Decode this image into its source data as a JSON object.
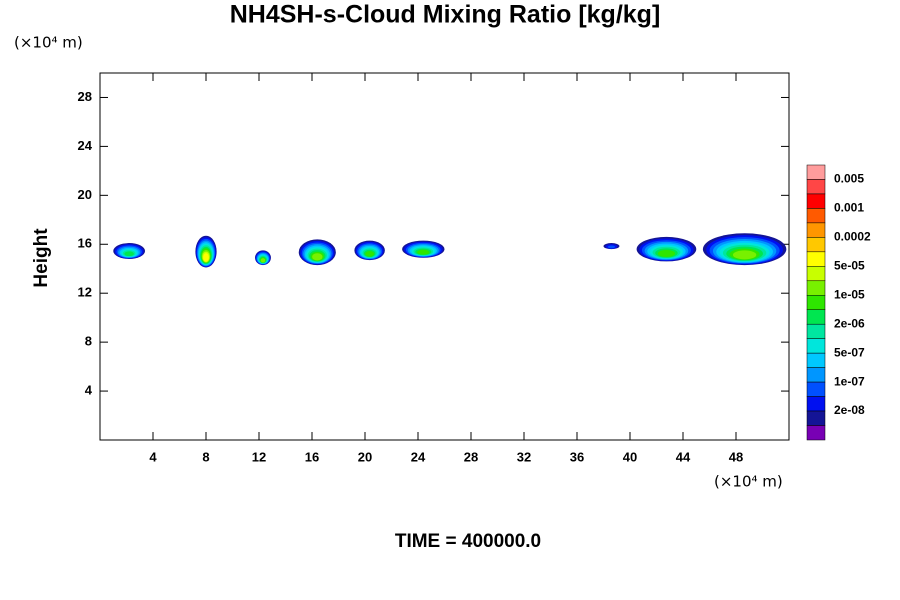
{
  "chart_data": {
    "type": "contour",
    "title": "NH4SH-s-Cloud Mixing Ratio [kg/kg]",
    "y_label": "Height",
    "y_unit": "(×10⁴ m)",
    "x_unit": "(×10⁴ m)",
    "footer": "TIME = 400000.0",
    "xlim": [
      0,
      52
    ],
    "xticks": [
      4,
      8,
      12,
      16,
      20,
      24,
      28,
      32,
      36,
      40,
      44,
      48
    ],
    "ylim": [
      0,
      30
    ],
    "yticks": [
      4,
      8,
      12,
      16,
      20,
      24,
      28
    ],
    "colorbar": {
      "colors": [
        "#ff9c9c",
        "#ff4646",
        "#ff0000",
        "#ff5a00",
        "#ff9600",
        "#ffc800",
        "#ffff00",
        "#c8ff00",
        "#78f000",
        "#2ee600",
        "#00e650",
        "#00e6a0",
        "#00e6dc",
        "#00c8ff",
        "#0096ff",
        "#0050ff",
        "#0010f0",
        "#141496",
        "#7800b4"
      ],
      "labels": [
        "0.005",
        "0.001",
        "0.0002",
        "5e-05",
        "1e-05",
        "2e-06",
        "5e-07",
        "1e-07",
        "2e-08"
      ]
    },
    "clouds": [
      {
        "x": [
          1.0,
          3.4
        ],
        "y": [
          14.8,
          16.1
        ],
        "peak": 10
      },
      {
        "x": [
          7.2,
          8.8
        ],
        "y": [
          14.1,
          16.7
        ],
        "peak": 6
      },
      {
        "x": [
          11.7,
          12.9
        ],
        "y": [
          14.3,
          15.5
        ],
        "peak": 8
      },
      {
        "x": [
          15.0,
          17.8
        ],
        "y": [
          14.3,
          16.4
        ],
        "peak": 8
      },
      {
        "x": [
          19.2,
          21.5
        ],
        "y": [
          14.7,
          16.3
        ],
        "peak": 9
      },
      {
        "x": [
          22.8,
          26.0
        ],
        "y": [
          14.9,
          16.3
        ],
        "peak": 9
      },
      {
        "x": [
          38.0,
          39.2
        ],
        "y": [
          15.6,
          16.1
        ],
        "peak": 15
      },
      {
        "x": [
          40.5,
          45.0
        ],
        "y": [
          14.6,
          16.6
        ],
        "peak": 9
      },
      {
        "x": [
          45.5,
          51.8
        ],
        "y": [
          14.3,
          16.9
        ],
        "peak": 8
      }
    ]
  }
}
